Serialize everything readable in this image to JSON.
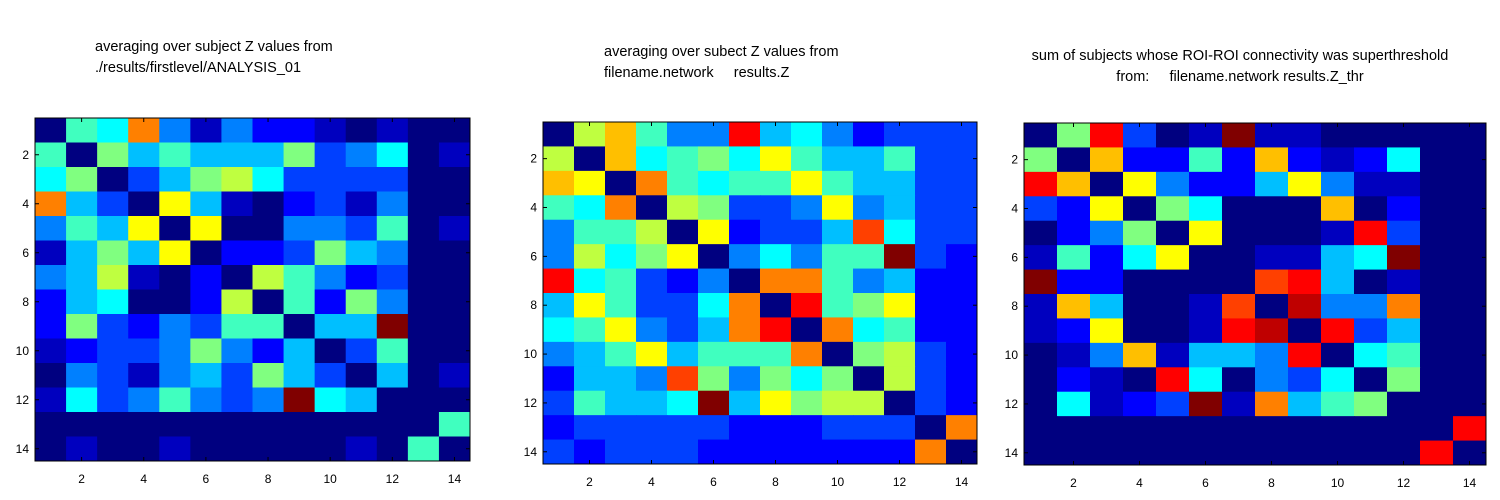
{
  "chart_data": [
    {
      "type": "heatmap",
      "title": [
        "averaging over subject Z values from",
        "./results/firstlevel/ANALYSIS_01"
      ],
      "colormap": "jet",
      "value_scale": "normalized 0-1 (value/16)",
      "xticks": [
        "2",
        "4",
        "6",
        "8",
        "10",
        "12",
        "14"
      ],
      "yticks": [
        "2",
        "4",
        "6",
        "8",
        "10",
        "12",
        "14"
      ],
      "xlim": [
        0.5,
        14.5
      ],
      "ylim": [
        0.5,
        14.5
      ],
      "matrix": [
        [
          0,
          7,
          6,
          12,
          4,
          1,
          4,
          2,
          2,
          1,
          0,
          1,
          0,
          0
        ],
        [
          7,
          0,
          8,
          5,
          7,
          5,
          5,
          5,
          8,
          3,
          4,
          6,
          0,
          1
        ],
        [
          6,
          8,
          0,
          3,
          5,
          8,
          9,
          6,
          3,
          3,
          3,
          3,
          0,
          0
        ],
        [
          12,
          5,
          3,
          0,
          10,
          5,
          1,
          0,
          2,
          3,
          1,
          4,
          0,
          0
        ],
        [
          4,
          7,
          5,
          10,
          0,
          10,
          0,
          0,
          4,
          4,
          3,
          7,
          0,
          1
        ],
        [
          1,
          5,
          8,
          5,
          10,
          0,
          2,
          2,
          3,
          8,
          5,
          4,
          0,
          0
        ],
        [
          4,
          5,
          9,
          1,
          0,
          2,
          0,
          9,
          7,
          4,
          2,
          3,
          0,
          0
        ],
        [
          2,
          5,
          6,
          0,
          0,
          2,
          9,
          0,
          7,
          2,
          8,
          4,
          0,
          0
        ],
        [
          2,
          8,
          3,
          2,
          4,
          3,
          7,
          7,
          0,
          5,
          5,
          16,
          0,
          0
        ],
        [
          1,
          2,
          3,
          3,
          4,
          8,
          4,
          2,
          5,
          0,
          3,
          7,
          0,
          0
        ],
        [
          0,
          4,
          3,
          1,
          4,
          5,
          3,
          8,
          5,
          3,
          0,
          5,
          0,
          1
        ],
        [
          1,
          6,
          3,
          4,
          7,
          4,
          3,
          4,
          16,
          6,
          5,
          0,
          0,
          0
        ],
        [
          0,
          0,
          0,
          0,
          0,
          0,
          0,
          0,
          0,
          0,
          0,
          0,
          0,
          7
        ],
        [
          0,
          1,
          0,
          0,
          1,
          0,
          0,
          0,
          0,
          0,
          1,
          0,
          7,
          0
        ]
      ]
    },
    {
      "type": "heatmap",
      "title": [
        "averaging over subect Z values from",
        "filename.network     results.Z"
      ],
      "colormap": "jet",
      "value_scale": "normalized 0-1 (value/16)",
      "xticks": [
        "2",
        "4",
        "6",
        "8",
        "10",
        "12",
        "14"
      ],
      "yticks": [
        "2",
        "4",
        "6",
        "8",
        "10",
        "12",
        "14"
      ],
      "xlim": [
        0.5,
        14.5
      ],
      "ylim": [
        0.5,
        14.5
      ],
      "matrix": [
        [
          0,
          9,
          11,
          7,
          4,
          4,
          14,
          5,
          6,
          4,
          2,
          3,
          3,
          3
        ],
        [
          9,
          0,
          11,
          6,
          7,
          8,
          6,
          10,
          7,
          5,
          5,
          7,
          3,
          3
        ],
        [
          11,
          10,
          0,
          12,
          7,
          6,
          7,
          7,
          10,
          7,
          5,
          5,
          3,
          3
        ],
        [
          7,
          6,
          12,
          0,
          9,
          8,
          3,
          3,
          4,
          10,
          4,
          5,
          3,
          3
        ],
        [
          4,
          7,
          7,
          9,
          0,
          10,
          2,
          3,
          3,
          5,
          13,
          6,
          3,
          3
        ],
        [
          4,
          9,
          6,
          8,
          10,
          0,
          4,
          6,
          4,
          7,
          7,
          16,
          3,
          2
        ],
        [
          14,
          6,
          7,
          3,
          2,
          4,
          0,
          12,
          12,
          7,
          4,
          5,
          2,
          2
        ],
        [
          5,
          10,
          7,
          3,
          3,
          6,
          12,
          0,
          14,
          7,
          8,
          10,
          2,
          2
        ],
        [
          6,
          7,
          10,
          4,
          3,
          5,
          12,
          14,
          0,
          12,
          6,
          7,
          2,
          2
        ],
        [
          4,
          5,
          7,
          10,
          5,
          7,
          7,
          7,
          12,
          0,
          8,
          9,
          3,
          2
        ],
        [
          2,
          5,
          5,
          4,
          13,
          8,
          4,
          8,
          6,
          8,
          0,
          9,
          3,
          2
        ],
        [
          3,
          7,
          5,
          5,
          6,
          16,
          5,
          10,
          8,
          9,
          9,
          0,
          3,
          2
        ],
        [
          2,
          3,
          3,
          3,
          3,
          3,
          2,
          2,
          2,
          3,
          3,
          3,
          0,
          12
        ],
        [
          3,
          2,
          3,
          3,
          3,
          2,
          2,
          2,
          2,
          2,
          2,
          2,
          12,
          0
        ]
      ]
    },
    {
      "type": "heatmap",
      "title": [
        "sum of subjects whose ROI-ROI connectivity was superthreshold",
        "from:     filename.network results.Z_thr"
      ],
      "colormap": "jet",
      "value_scale": "normalized 0-1 (value/16)",
      "xticks": [
        "2",
        "4",
        "6",
        "8",
        "10",
        "12",
        "14"
      ],
      "yticks": [
        "2",
        "4",
        "6",
        "8",
        "10",
        "12",
        "14"
      ],
      "xlim": [
        0.5,
        14.5
      ],
      "ylim": [
        0.5,
        14.5
      ],
      "matrix": [
        [
          0,
          8,
          14,
          3,
          0,
          1,
          16,
          1,
          1,
          0,
          0,
          0,
          0,
          0
        ],
        [
          8,
          0,
          11,
          2,
          2,
          7,
          2,
          11,
          2,
          1,
          2,
          6,
          0,
          0
        ],
        [
          14,
          11,
          0,
          10,
          4,
          2,
          2,
          5,
          10,
          4,
          1,
          1,
          0,
          0
        ],
        [
          3,
          2,
          10,
          0,
          8,
          6,
          0,
          0,
          0,
          11,
          0,
          2,
          0,
          0
        ],
        [
          0,
          2,
          4,
          8,
          0,
          10,
          0,
          0,
          0,
          1,
          14,
          3,
          0,
          0
        ],
        [
          1,
          7,
          2,
          6,
          10,
          0,
          0,
          1,
          1,
          5,
          6,
          16,
          0,
          0
        ],
        [
          16,
          2,
          2,
          0,
          0,
          0,
          0,
          13,
          14,
          5,
          0,
          1,
          0,
          0
        ],
        [
          1,
          11,
          5,
          0,
          0,
          1,
          13,
          0,
          15,
          4,
          4,
          12,
          0,
          0
        ],
        [
          1,
          2,
          10,
          0,
          0,
          1,
          14,
          15,
          0,
          14,
          3,
          5,
          0,
          0
        ],
        [
          0,
          1,
          4,
          11,
          1,
          5,
          5,
          4,
          14,
          0,
          6,
          7,
          0,
          0
        ],
        [
          0,
          2,
          1,
          0,
          14,
          6,
          0,
          4,
          3,
          6,
          0,
          8,
          0,
          0
        ],
        [
          0,
          6,
          1,
          2,
          3,
          16,
          1,
          12,
          5,
          7,
          8,
          0,
          0,
          0
        ],
        [
          0,
          0,
          0,
          0,
          0,
          0,
          0,
          0,
          0,
          0,
          0,
          0,
          0,
          14
        ],
        [
          0,
          0,
          0,
          0,
          0,
          0,
          0,
          0,
          0,
          0,
          0,
          0,
          14,
          0
        ]
      ]
    }
  ]
}
